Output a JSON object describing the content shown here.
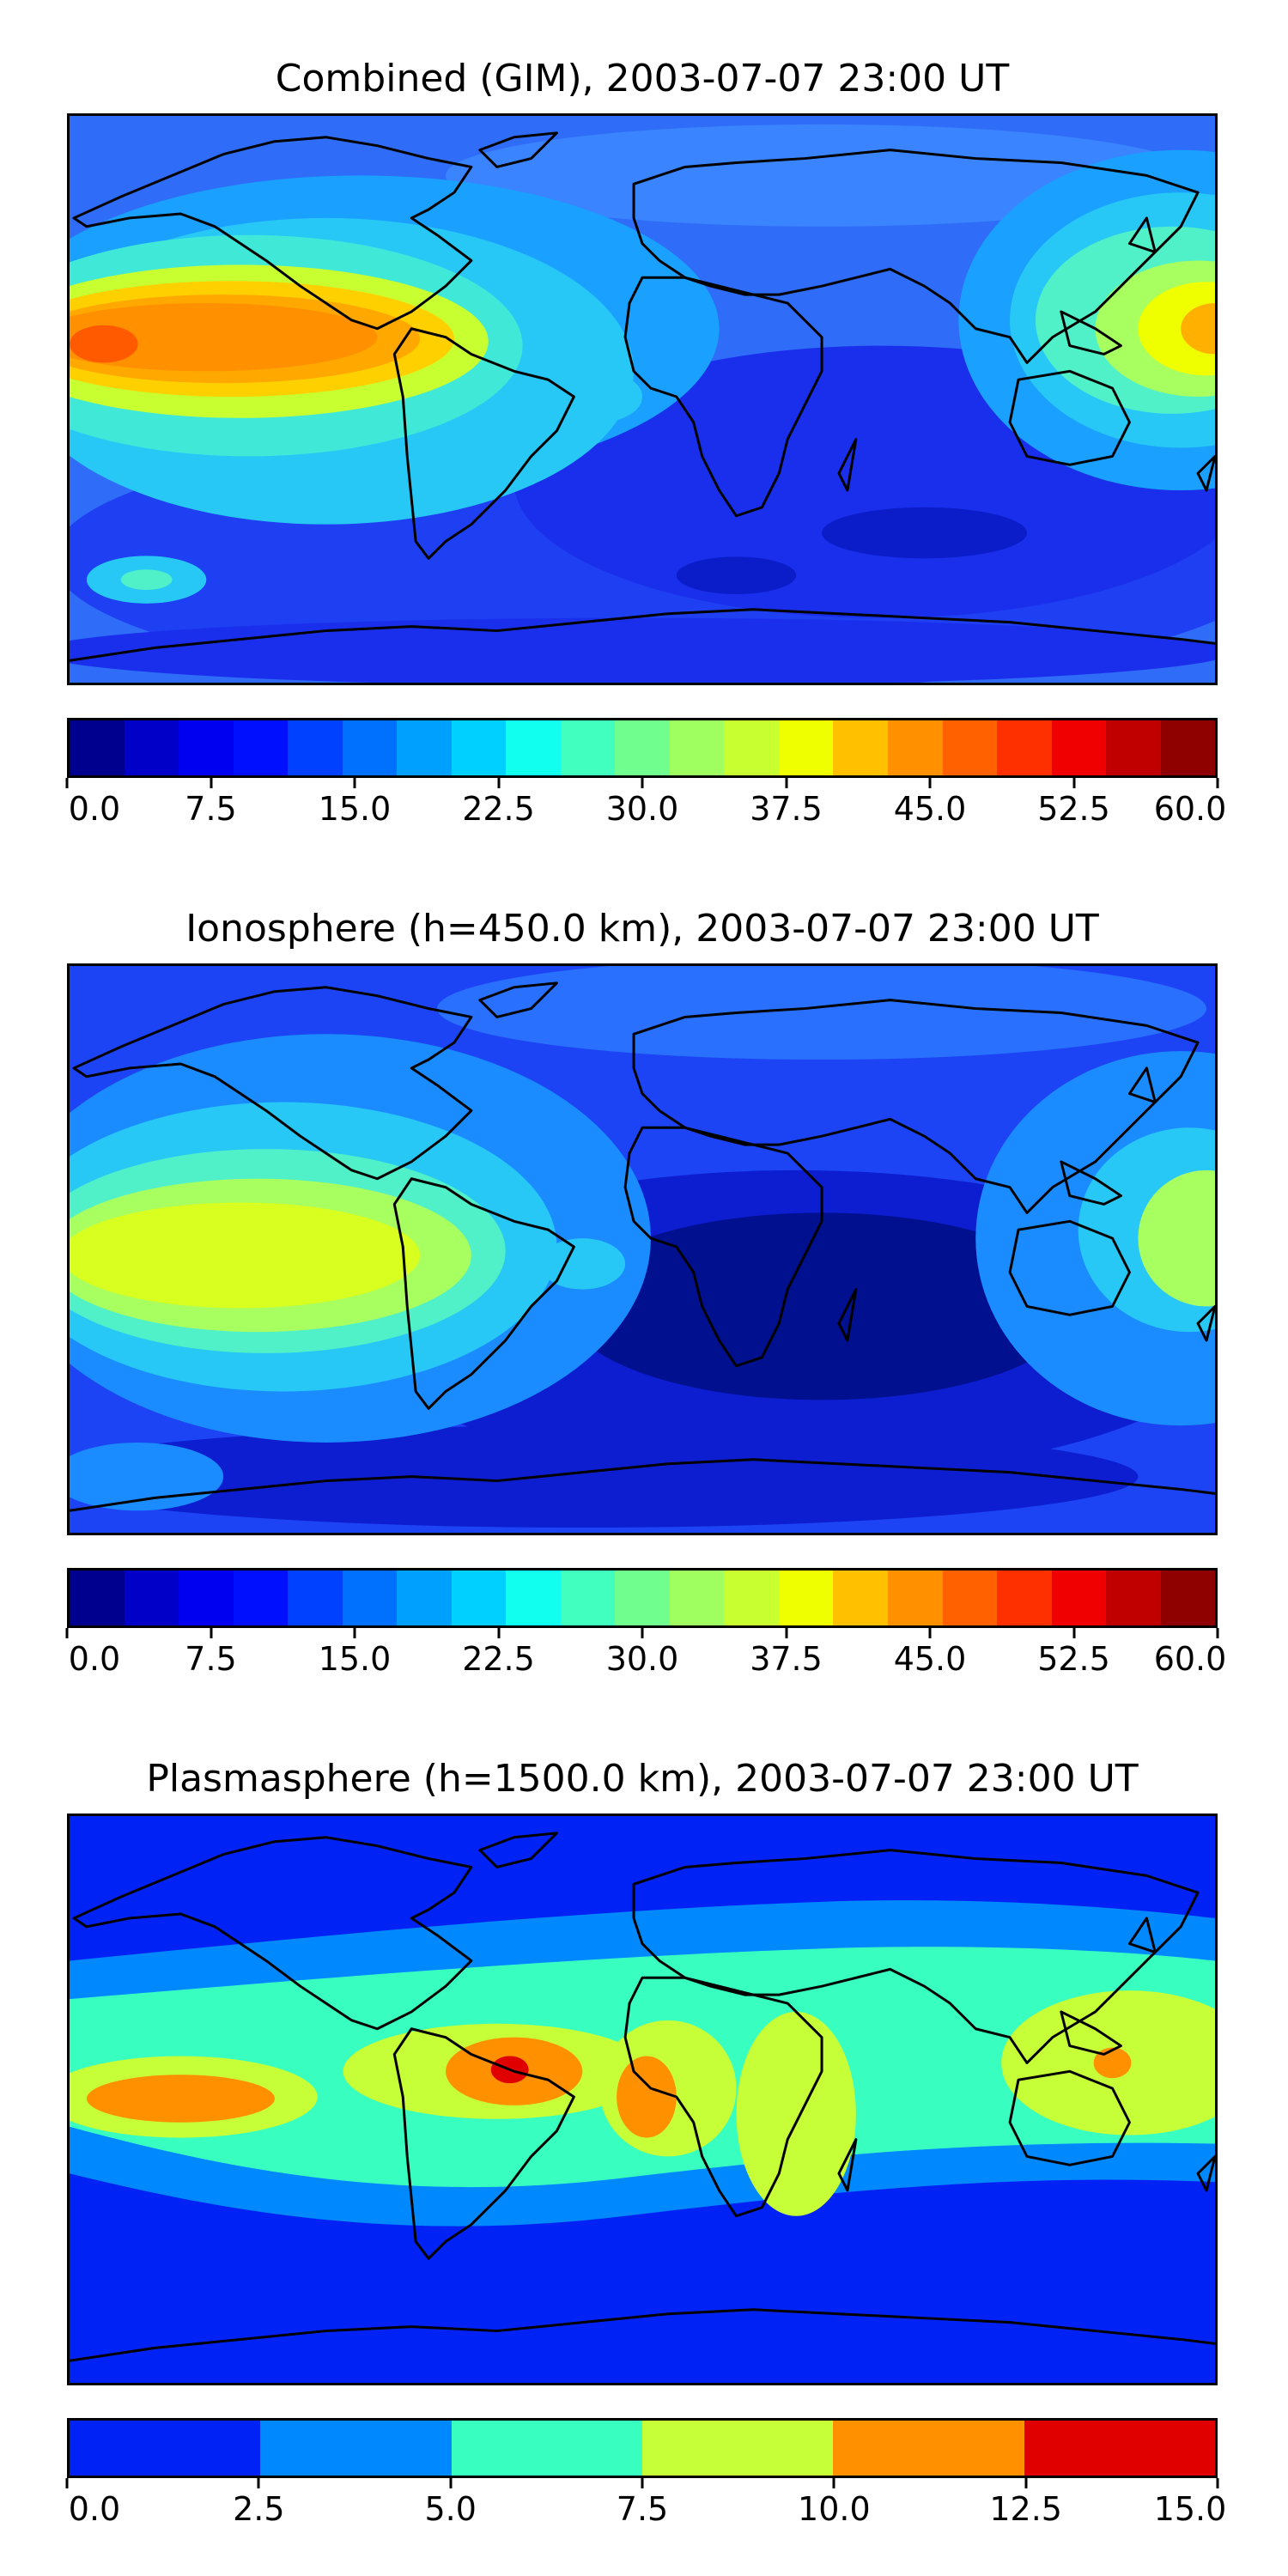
{
  "panels": [
    {
      "title": "Combined (GIM), 2003-07-07 23:00 UT",
      "colorbar": {
        "vmin": 0.0,
        "vmax": 60.0,
        "ticks": [
          "0.0",
          "7.5",
          "15.0",
          "22.5",
          "30.0",
          "37.5",
          "45.0",
          "52.5",
          "60.0"
        ],
        "colors": [
          "#00008f",
          "#0000c8",
          "#0000f0",
          "#0010ff",
          "#0040ff",
          "#0070ff",
          "#00a0ff",
          "#00d0ff",
          "#10ffef",
          "#40ffbf",
          "#70ff8f",
          "#a0ff60",
          "#c8ff30",
          "#f0ff00",
          "#ffc000",
          "#ff9000",
          "#ff6000",
          "#ff3000",
          "#f00000",
          "#c00000",
          "#8f0000"
        ]
      }
    },
    {
      "title": "Ionosphere  (h=450.0 km), 2003-07-07 23:00 UT",
      "colorbar": {
        "vmin": 0.0,
        "vmax": 60.0,
        "ticks": [
          "0.0",
          "7.5",
          "15.0",
          "22.5",
          "30.0",
          "37.5",
          "45.0",
          "52.5",
          "60.0"
        ],
        "colors": [
          "#00008f",
          "#0000c8",
          "#0000f0",
          "#0010ff",
          "#0040ff",
          "#0070ff",
          "#00a0ff",
          "#00d0ff",
          "#10ffef",
          "#40ffbf",
          "#70ff8f",
          "#a0ff60",
          "#c8ff30",
          "#f0ff00",
          "#ffc000",
          "#ff9000",
          "#ff6000",
          "#ff3000",
          "#f00000",
          "#c00000",
          "#8f0000"
        ]
      }
    },
    {
      "title": "Plasmasphere (h=1500.0 km), 2003-07-07 23:00 UT",
      "colorbar": {
        "vmin": 0.0,
        "vmax": 15.0,
        "ticks": [
          "0.0",
          "2.5",
          "5.0",
          "7.5",
          "10.0",
          "12.5",
          "15.0"
        ],
        "colors": [
          "#0022f5",
          "#0088ff",
          "#38ffc0",
          "#c6ff38",
          "#ff9000",
          "#e00000"
        ]
      }
    }
  ]
}
